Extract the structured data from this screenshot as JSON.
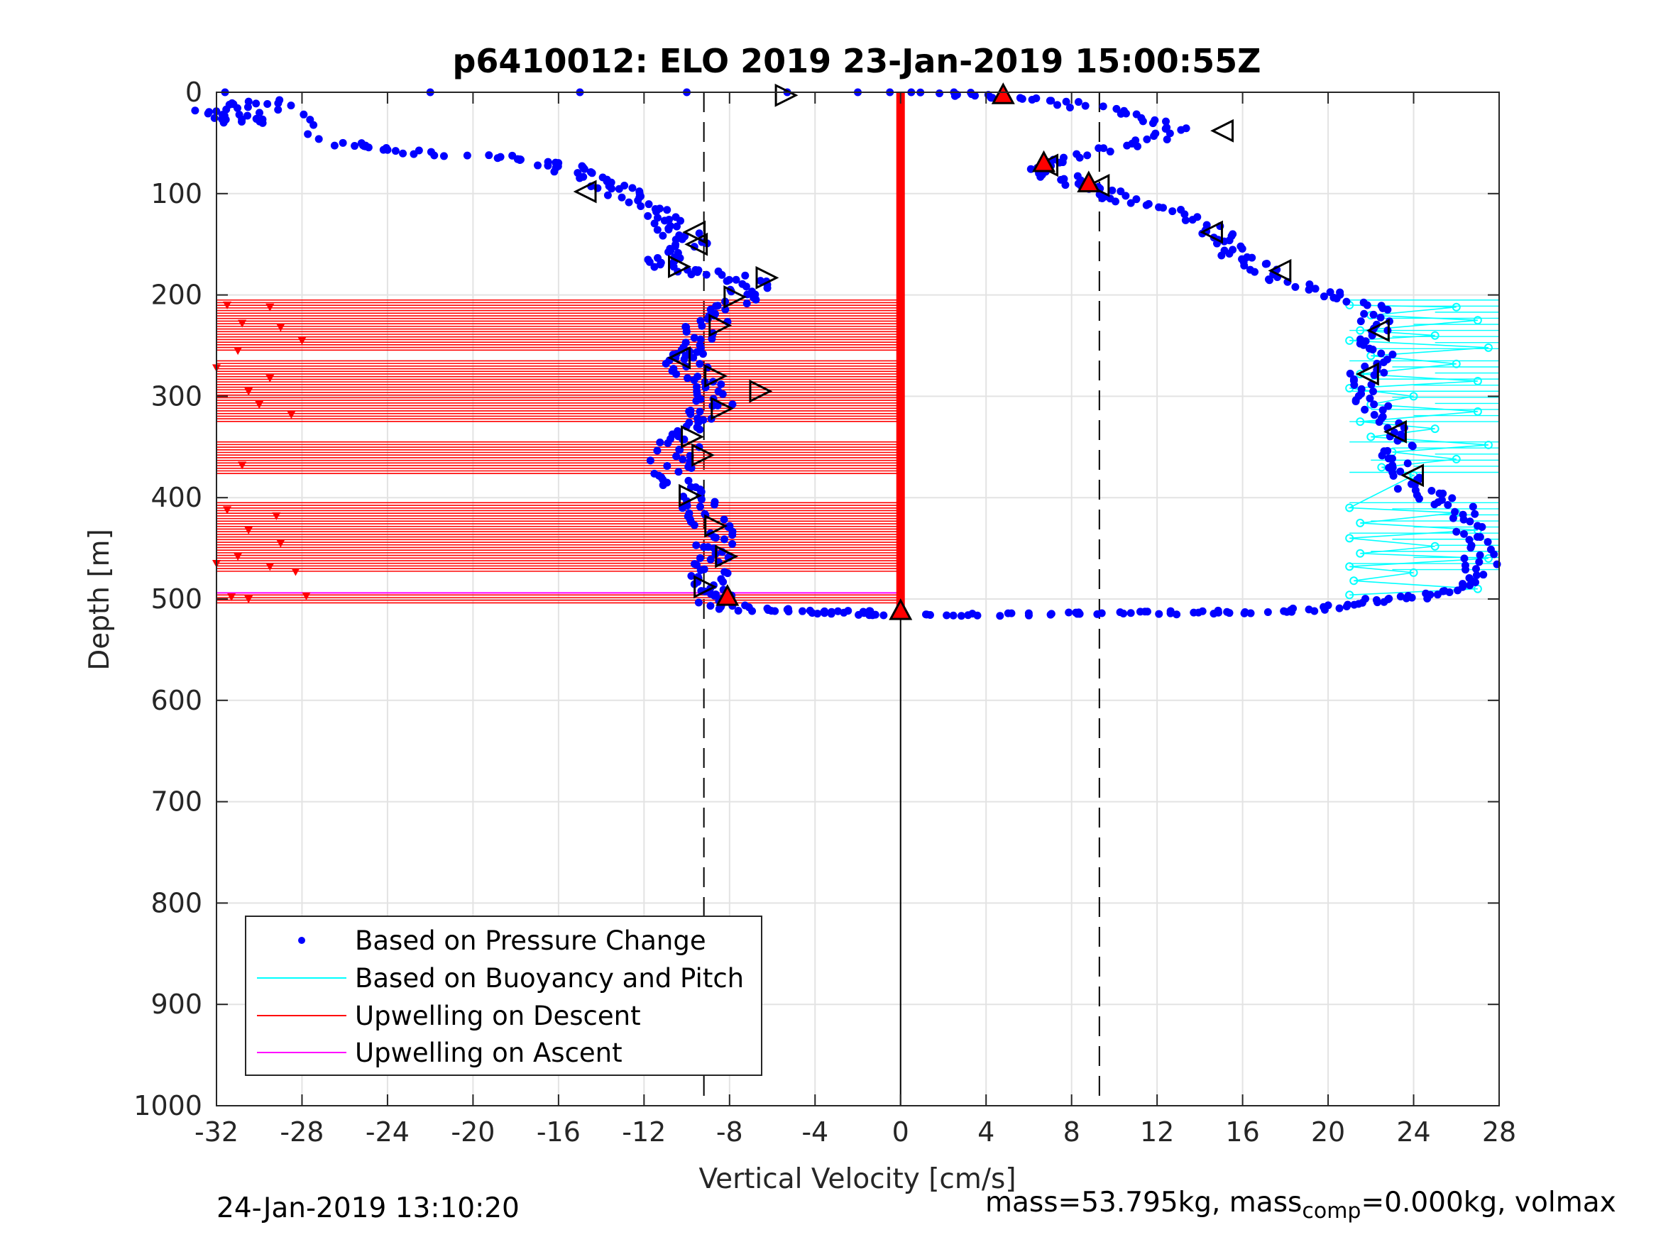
{
  "chart_data": {
    "type": "scatter",
    "title": "p6410012: ELO 2019 23-Jan-2019 15:00:55Z",
    "xlabel": "Vertical Velocity [cm/s]",
    "ylabel": "Depth [m]",
    "xlim": [
      -32,
      28
    ],
    "ylim": [
      0,
      1000
    ],
    "y_reversed": true,
    "grid": true,
    "xticks": [
      -32,
      -28,
      -24,
      -20,
      -16,
      -12,
      -8,
      -4,
      0,
      4,
      8,
      12,
      16,
      20,
      24,
      28
    ],
    "yticks": [
      0,
      100,
      200,
      300,
      400,
      500,
      600,
      700,
      800,
      900,
      1000
    ],
    "legend_position": "bottom-left",
    "legend": [
      {
        "label": "Based on Pressure Change",
        "color": "#0000ff",
        "style": "dot"
      },
      {
        "label": "Based on Buoyancy and Pitch",
        "color": "#00ffff",
        "style": "line"
      },
      {
        "label": "Upwelling on Descent",
        "color": "#ff0000",
        "style": "line"
      },
      {
        "label": "Upwelling on Ascent",
        "color": "#ff00ff",
        "style": "line"
      }
    ],
    "reference_lines": {
      "vertical_dashed": [
        -9.2,
        9.3
      ],
      "vertical_solid": [
        0
      ]
    },
    "series": [
      {
        "name": "Based on Pressure Change",
        "style": "dots",
        "color": "#0000ff",
        "descent": [
          [
            -32,
            20
          ],
          [
            -31,
            25
          ],
          [
            -30.6,
            30
          ],
          [
            -31,
            15
          ],
          [
            -29.5,
            8
          ],
          [
            -26,
            50
          ],
          [
            -25,
            55
          ],
          [
            -22,
            60
          ],
          [
            -18,
            65
          ],
          [
            -16,
            72
          ],
          [
            -15,
            80
          ],
          [
            -14,
            90
          ],
          [
            -13,
            98
          ],
          [
            -12,
            110
          ],
          [
            -11,
            125
          ],
          [
            -10.5,
            135
          ],
          [
            -10,
            148
          ],
          [
            -10.8,
            160
          ],
          [
            -11.5,
            170
          ],
          [
            -9.5,
            178
          ],
          [
            -7.2,
            185
          ],
          [
            -7,
            195
          ],
          [
            -8,
            210
          ],
          [
            -9,
            225
          ],
          [
            -9.5,
            240
          ],
          [
            -10,
            255
          ],
          [
            -10.6,
            262
          ],
          [
            -9.8,
            275
          ],
          [
            -9.2,
            290
          ],
          [
            -8.6,
            305
          ],
          [
            -9.5,
            320
          ],
          [
            -10,
            335
          ],
          [
            -10.4,
            350
          ],
          [
            -10.8,
            365
          ],
          [
            -10.5,
            380
          ],
          [
            -10,
            395
          ],
          [
            -9.5,
            410
          ],
          [
            -9,
            425
          ],
          [
            -8.6,
            440
          ],
          [
            -8.7,
            455
          ],
          [
            -9,
            470
          ],
          [
            -9.2,
            482
          ],
          [
            -9,
            495
          ],
          [
            -8.5,
            505
          ],
          [
            -7,
            510
          ],
          [
            -5,
            512
          ],
          [
            -3,
            513
          ],
          [
            -1.5,
            514
          ],
          [
            0,
            515
          ]
        ],
        "ascent": [
          [
            1,
            517
          ],
          [
            3,
            516
          ],
          [
            5.5,
            515
          ],
          [
            8,
            515
          ],
          [
            10,
            514
          ],
          [
            12,
            514
          ],
          [
            14,
            513
          ],
          [
            16,
            513
          ],
          [
            18,
            512
          ],
          [
            19.5,
            510
          ],
          [
            21,
            506
          ],
          [
            22.5,
            500
          ],
          [
            24,
            498
          ],
          [
            25.5,
            493
          ],
          [
            26.5,
            485
          ],
          [
            27.2,
            470
          ],
          [
            27,
            455
          ],
          [
            26.8,
            440
          ],
          [
            26.4,
            425
          ],
          [
            26,
            410
          ],
          [
            25,
            400
          ],
          [
            24,
            390
          ],
          [
            23.5,
            378
          ],
          [
            23,
            365
          ],
          [
            23.4,
            350
          ],
          [
            23,
            335
          ],
          [
            22.5,
            320
          ],
          [
            22,
            305
          ],
          [
            21.5,
            292
          ],
          [
            21.8,
            278
          ],
          [
            22.6,
            265
          ],
          [
            22,
            250
          ],
          [
            22,
            235
          ],
          [
            22.4,
            220
          ],
          [
            21.5,
            208
          ],
          [
            20,
            198
          ],
          [
            18,
            188
          ],
          [
            17,
            176
          ],
          [
            16,
            165
          ],
          [
            15.5,
            155
          ],
          [
            15,
            145
          ],
          [
            14.5,
            135
          ],
          [
            13,
            120
          ],
          [
            11,
            110
          ],
          [
            10,
            102
          ],
          [
            9,
            95
          ],
          [
            8,
            88
          ],
          [
            7,
            80
          ],
          [
            6.5,
            72
          ],
          [
            8,
            65
          ],
          [
            10,
            55
          ],
          [
            12,
            45
          ],
          [
            13,
            35
          ],
          [
            11,
            25
          ],
          [
            9,
            15
          ],
          [
            7,
            8
          ],
          [
            5,
            5
          ],
          [
            3,
            2
          ],
          [
            1,
            0
          ]
        ],
        "surface": [
          [
            -31.6,
            0
          ],
          [
            -22,
            0
          ],
          [
            -15,
            0
          ],
          [
            -10,
            0
          ],
          [
            -5.3,
            0
          ],
          [
            -2,
            0
          ],
          [
            -0.5,
            0
          ],
          [
            0.5,
            0
          ]
        ]
      },
      {
        "name": "Based on Buoyancy and Pitch",
        "style": "line-markers",
        "color": "#00ffff",
        "points": [
          [
            21,
            210
          ],
          [
            26,
            212
          ],
          [
            22,
            220
          ],
          [
            27,
            225
          ],
          [
            21.5,
            235
          ],
          [
            25,
            240
          ],
          [
            21,
            245
          ],
          [
            27.5,
            252
          ],
          [
            22,
            260
          ],
          [
            26,
            268
          ],
          [
            21.5,
            278
          ],
          [
            27,
            285
          ],
          [
            21,
            292
          ],
          [
            24,
            300
          ],
          [
            22,
            308
          ],
          [
            27,
            315
          ],
          [
            21.5,
            325
          ],
          [
            25,
            332
          ],
          [
            22,
            340
          ],
          [
            27.5,
            348
          ],
          [
            23,
            355
          ],
          [
            26,
            362
          ],
          [
            22.5,
            370
          ],
          [
            24,
            378
          ],
          [
            21,
            410
          ],
          [
            26,
            415
          ],
          [
            21.5,
            425
          ],
          [
            27,
            432
          ],
          [
            21,
            440
          ],
          [
            25,
            448
          ],
          [
            21.5,
            455
          ],
          [
            27.5,
            460
          ],
          [
            21,
            468
          ],
          [
            24,
            474
          ],
          [
            21.2,
            482
          ],
          [
            27,
            490
          ],
          [
            21,
            496
          ]
        ]
      },
      {
        "name": "Upwelling on Descent",
        "style": "hlines",
        "color": "#ff0000",
        "bands": [
          [
            205,
            255
          ],
          [
            265,
            325
          ],
          [
            345,
            378
          ],
          [
            405,
            475
          ],
          [
            496,
            504
          ]
        ],
        "markers": [
          [
            -31.5,
            210
          ],
          [
            -29.5,
            212
          ],
          [
            -30.8,
            228
          ],
          [
            -29,
            232
          ],
          [
            -28,
            245
          ],
          [
            -31,
            255
          ],
          [
            -32,
            272
          ],
          [
            -29.5,
            282
          ],
          [
            -30.5,
            295
          ],
          [
            -30,
            308
          ],
          [
            -28.5,
            318
          ],
          [
            -30.8,
            368
          ],
          [
            -31.5,
            412
          ],
          [
            -29.2,
            418
          ],
          [
            -30.5,
            432
          ],
          [
            -29,
            445
          ],
          [
            -31,
            458
          ],
          [
            -29.5,
            468
          ],
          [
            -28.3,
            473
          ],
          [
            -32,
            465
          ],
          [
            -31.3,
            498
          ],
          [
            -30.5,
            500
          ],
          [
            -27.8,
            497
          ]
        ]
      },
      {
        "name": "Upwelling on Ascent",
        "style": "hlines",
        "color": "#ff00ff",
        "lines": [
          [
            -32,
            0,
            0
          ],
          [
            -32,
            494,
            0
          ]
        ]
      }
    ],
    "symbols": {
      "open_triangles_right": [
        [
          -5.4,
          3
        ],
        [
          -10.4,
          172
        ],
        [
          -6.3,
          183
        ],
        [
          -7.8,
          202
        ],
        [
          -8.5,
          230
        ],
        [
          -8.7,
          280
        ],
        [
          -6.6,
          295
        ],
        [
          -8.4,
          312
        ],
        [
          -9.8,
          340
        ],
        [
          -9.3,
          358
        ],
        [
          -9.9,
          398
        ],
        [
          -8.7,
          428
        ],
        [
          -8.2,
          458
        ],
        [
          -9.2,
          488
        ]
      ],
      "open_triangles_left": [
        [
          -14.7,
          98
        ],
        [
          -9.6,
          138
        ],
        [
          -9.5,
          150
        ],
        [
          -10.3,
          262
        ],
        [
          15.1,
          38
        ],
        [
          6.9,
          72
        ],
        [
          9.3,
          92
        ],
        [
          14.6,
          138
        ],
        [
          17.8,
          176
        ],
        [
          22.4,
          235
        ],
        [
          21.9,
          278
        ],
        [
          23.2,
          335
        ],
        [
          24,
          378
        ]
      ],
      "red_filled_triangles": [
        [
          4.8,
          3
        ],
        [
          6.7,
          70
        ],
        [
          8.8,
          90
        ],
        [
          -8.1,
          498
        ],
        [
          0,
          512
        ]
      ],
      "red_vertical_bar": {
        "x": 0,
        "from": 0,
        "to": 512
      }
    }
  },
  "footer": {
    "timestamp": "24-Jan-2019 13:10:20",
    "mass_prefix": "mass=53.795kg, mass",
    "mass_sub": "comp",
    "mass_suffix": "=0.000kg, volmax"
  }
}
